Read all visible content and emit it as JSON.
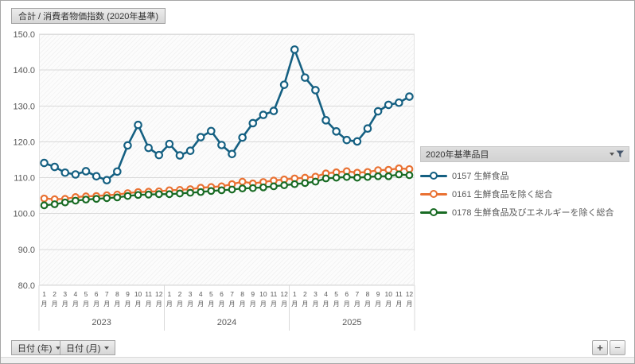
{
  "header": {
    "value_field_label": "合計 / 消費者物価指数 (2020年基準)"
  },
  "colors": {
    "series_blue": "#156082",
    "series_orange": "#E97132",
    "series_green": "#196B24",
    "grid": "#D9D9D9",
    "axis_text": "#595959"
  },
  "chart_data": {
    "type": "line",
    "title": "合計 / 消費者物価指数 (2020年基準)",
    "legend_title": "2020年基準品目",
    "legend_position": "right",
    "grid": true,
    "ylim": [
      80,
      150
    ],
    "yticks": [
      "150.0",
      "140.0",
      "130.0",
      "120.0",
      "110.0",
      "100.0",
      "90.0",
      "80.0"
    ],
    "years": [
      "2023",
      "2024",
      "2025"
    ],
    "months": [
      "1",
      "2",
      "3",
      "4",
      "5",
      "6",
      "7",
      "8",
      "9",
      "10",
      "11",
      "12"
    ],
    "month_suffix": "月",
    "series": [
      {
        "name": "0157 生鮮食品",
        "color": "#156082",
        "values": [
          114.1,
          113.0,
          111.4,
          110.9,
          111.8,
          110.4,
          109.3,
          111.7,
          119.0,
          124.7,
          118.3,
          116.3,
          119.4,
          116.2,
          117.5,
          121.3,
          123.0,
          119.1,
          116.6,
          121.2,
          125.2,
          127.5,
          128.6,
          135.9,
          145.7,
          137.9,
          134.4,
          126.0,
          122.9,
          120.5,
          120.1,
          123.7,
          128.5,
          130.3,
          130.9,
          132.6
        ]
      },
      {
        "name": "0161 生鮮食品を除く総合",
        "color": "#E97132",
        "values": [
          104.2,
          104.0,
          104.1,
          104.6,
          104.8,
          104.9,
          105.1,
          105.3,
          105.7,
          106.0,
          106.1,
          106.2,
          106.5,
          106.6,
          106.8,
          107.2,
          107.4,
          107.6,
          108.2,
          108.9,
          108.4,
          108.8,
          109.2,
          109.5,
          109.8,
          110.0,
          110.3,
          111.2,
          111.5,
          111.8,
          111.4,
          111.6,
          112.1,
          112.2,
          112.6,
          112.4
        ]
      },
      {
        "name": "0178 生鮮食品及びエネルギーを除く総合",
        "color": "#196B24",
        "values": [
          102.3,
          102.6,
          103.1,
          103.6,
          103.9,
          104.1,
          104.3,
          104.5,
          104.9,
          105.2,
          105.3,
          105.4,
          105.4,
          105.6,
          105.8,
          106.0,
          106.3,
          106.5,
          106.7,
          107.0,
          107.1,
          107.3,
          107.6,
          107.9,
          108.2,
          108.5,
          108.9,
          109.8,
          110.0,
          110.2,
          110.0,
          110.2,
          110.4,
          110.4,
          110.9,
          110.7
        ]
      }
    ]
  },
  "filters": {
    "year_button": "日付 (年)",
    "month_button": "日付 (月)"
  },
  "zoom_controls": {
    "plus": "+",
    "minus": "−"
  }
}
